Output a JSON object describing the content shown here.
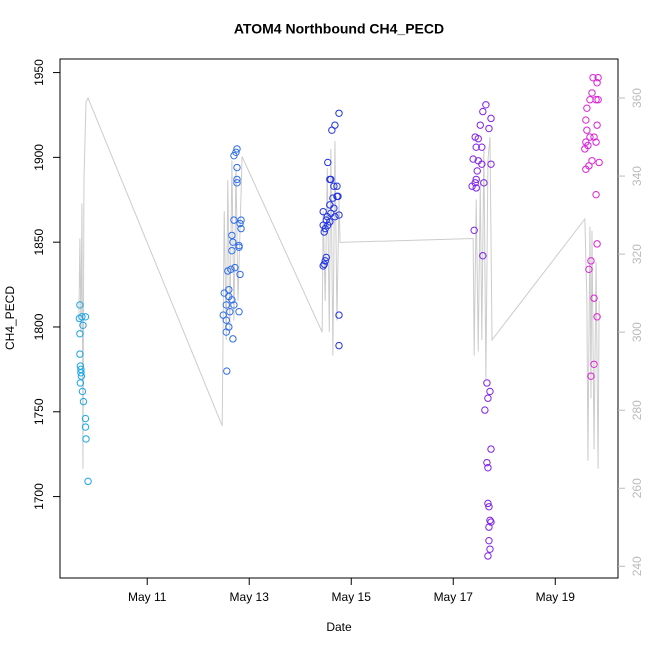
{
  "chart_data": {
    "type": "scatter",
    "title": "ATOM4 Northbound CH4_PECD",
    "x_label": "Date",
    "y_label": "CH4_PECD",
    "xlim": [
      9.29,
      20.23
    ],
    "xticks": [
      {
        "value": 11,
        "label": "May 11"
      },
      {
        "value": 13,
        "label": "May 13"
      },
      {
        "value": 15,
        "label": "May 15"
      },
      {
        "value": 17,
        "label": "May 17"
      },
      {
        "value": 19,
        "label": "May 19"
      }
    ],
    "ylim": [
      1652,
      1958
    ],
    "yticks": [
      1700,
      1750,
      1800,
      1850,
      1900,
      1950
    ],
    "y2lim": [
      237,
      370
    ],
    "y2ticks": [
      240,
      260,
      280,
      300,
      320,
      340,
      360
    ],
    "y2_color": "#bbbbbb",
    "series": [
      {
        "color": "#1aa7e8",
        "x": [
          9.68,
          9.72,
          9.79,
          9.67,
          9.74,
          9.68,
          9.68,
          9.69,
          9.7,
          9.7,
          9.71,
          9.69,
          9.73,
          9.75,
          9.79,
          9.79,
          9.8,
          9.84
        ],
        "values": [
          1813,
          1806,
          1806,
          1805,
          1801,
          1796,
          1784,
          1777,
          1775,
          1773,
          1771,
          1767,
          1762,
          1756,
          1746,
          1741,
          1734,
          1709
        ]
      },
      {
        "color": "#2f6ee8",
        "x": [
          12.76,
          12.74,
          12.7,
          12.76,
          12.76,
          12.76,
          12.7,
          12.84,
          12.82,
          12.84,
          12.66,
          12.68,
          12.8,
          12.8,
          12.66,
          12.72,
          12.64,
          12.58,
          12.82,
          12.51,
          12.6,
          12.6,
          12.66,
          12.7,
          12.55,
          12.8,
          12.62,
          12.49,
          12.55,
          12.6,
          12.55,
          12.68,
          12.56
        ],
        "values": [
          1905,
          1903,
          1901,
          1894,
          1887,
          1885,
          1863,
          1863,
          1861,
          1858,
          1854,
          1850,
          1848,
          1847,
          1845,
          1835,
          1834,
          1833,
          1831,
          1820,
          1822,
          1818,
          1816,
          1813,
          1813,
          1809,
          1809,
          1807,
          1804,
          1800,
          1797,
          1793,
          1774
        ]
      },
      {
        "color": "#2233e6",
        "x": [
          14.76,
          14.68,
          14.62,
          14.54,
          14.58,
          14.6,
          14.66,
          14.72,
          14.72,
          14.64,
          14.74,
          14.58,
          14.66,
          14.45,
          14.6,
          14.53,
          14.76,
          14.68,
          14.51,
          14.58,
          14.45,
          14.54,
          14.49,
          14.47,
          14.51,
          14.49,
          14.47,
          14.45,
          14.76,
          14.76
        ],
        "values": [
          1926,
          1919,
          1916,
          1897,
          1887,
          1887,
          1883,
          1883,
          1877,
          1876,
          1877,
          1872,
          1870,
          1868,
          1867,
          1865,
          1866,
          1865,
          1863,
          1862,
          1860,
          1860,
          1858,
          1856,
          1841,
          1839,
          1837,
          1836,
          1807,
          1789
        ]
      },
      {
        "color": "#7f22e8",
        "x": [
          17.64,
          17.58,
          17.74,
          17.53,
          17.7,
          17.43,
          17.49,
          17.56,
          17.45,
          17.39,
          17.49,
          17.56,
          17.74,
          17.47,
          17.45,
          17.43,
          17.6,
          17.37,
          17.45,
          17.41,
          17.58,
          17.66,
          17.72,
          17.68,
          17.62,
          17.74,
          17.66,
          17.68,
          17.68,
          17.7,
          17.72,
          17.74,
          17.7,
          17.7,
          17.72,
          17.68
        ],
        "values": [
          1931,
          1927,
          1923,
          1919,
          1917,
          1912,
          1911,
          1906,
          1906,
          1899,
          1898,
          1896,
          1896,
          1892,
          1887,
          1885,
          1885,
          1883,
          1882,
          1857,
          1842,
          1767,
          1762,
          1758,
          1751,
          1728,
          1720,
          1717,
          1696,
          1694,
          1686,
          1685,
          1682,
          1674,
          1669,
          1665
        ]
      },
      {
        "color": "#dd22d6",
        "x": [
          19.74,
          19.84,
          19.82,
          19.72,
          19.68,
          19.8,
          19.84,
          19.62,
          19.6,
          19.82,
          19.62,
          19.68,
          19.76,
          19.6,
          19.8,
          19.64,
          19.58,
          19.72,
          19.86,
          19.66,
          19.6,
          19.8,
          19.82,
          19.7,
          19.66,
          19.76,
          19.82,
          19.76,
          19.7
        ],
        "values": [
          1947,
          1947,
          1944,
          1938,
          1934,
          1934,
          1934,
          1929,
          1922,
          1919,
          1916,
          1912,
          1912,
          1909,
          1909,
          1907,
          1905,
          1898,
          1897,
          1895,
          1893,
          1878,
          1849,
          1839,
          1834,
          1817,
          1806,
          1778,
          1771
        ]
      },
      {
        "type": "line",
        "axis": "y2",
        "color": "#cccccc",
        "x": [
          9.66,
          9.68,
          9.7,
          9.72,
          9.74,
          9.76,
          9.8,
          9.84,
          12.47,
          12.51,
          12.55,
          12.58,
          12.62,
          12.66,
          12.7,
          12.74,
          12.78,
          12.86,
          14.43,
          14.45,
          14.49,
          14.53,
          14.57,
          14.6,
          14.64,
          14.68,
          14.72,
          14.76,
          14.78,
          17.39,
          17.41,
          17.45,
          17.49,
          17.53,
          17.56,
          17.6,
          17.64,
          17.68,
          17.72,
          17.76,
          19.58,
          19.62,
          19.64,
          19.68,
          19.7,
          19.72,
          19.76,
          19.8,
          19.84,
          19.86
        ],
        "values": [
          303,
          324,
          300,
          333,
          265,
          339,
          359,
          360,
          276,
          331,
          298,
          339,
          300,
          344,
          303,
          342,
          308,
          345,
          300,
          331,
          308,
          342,
          300,
          347,
          294,
          349,
          303,
          334,
          323,
          324,
          294,
          334,
          295,
          339,
          298,
          347,
          288,
          344,
          350,
          298,
          329,
          308,
          267,
          327,
          283,
          326,
          270,
          318,
          265,
          308
        ]
      }
    ]
  }
}
